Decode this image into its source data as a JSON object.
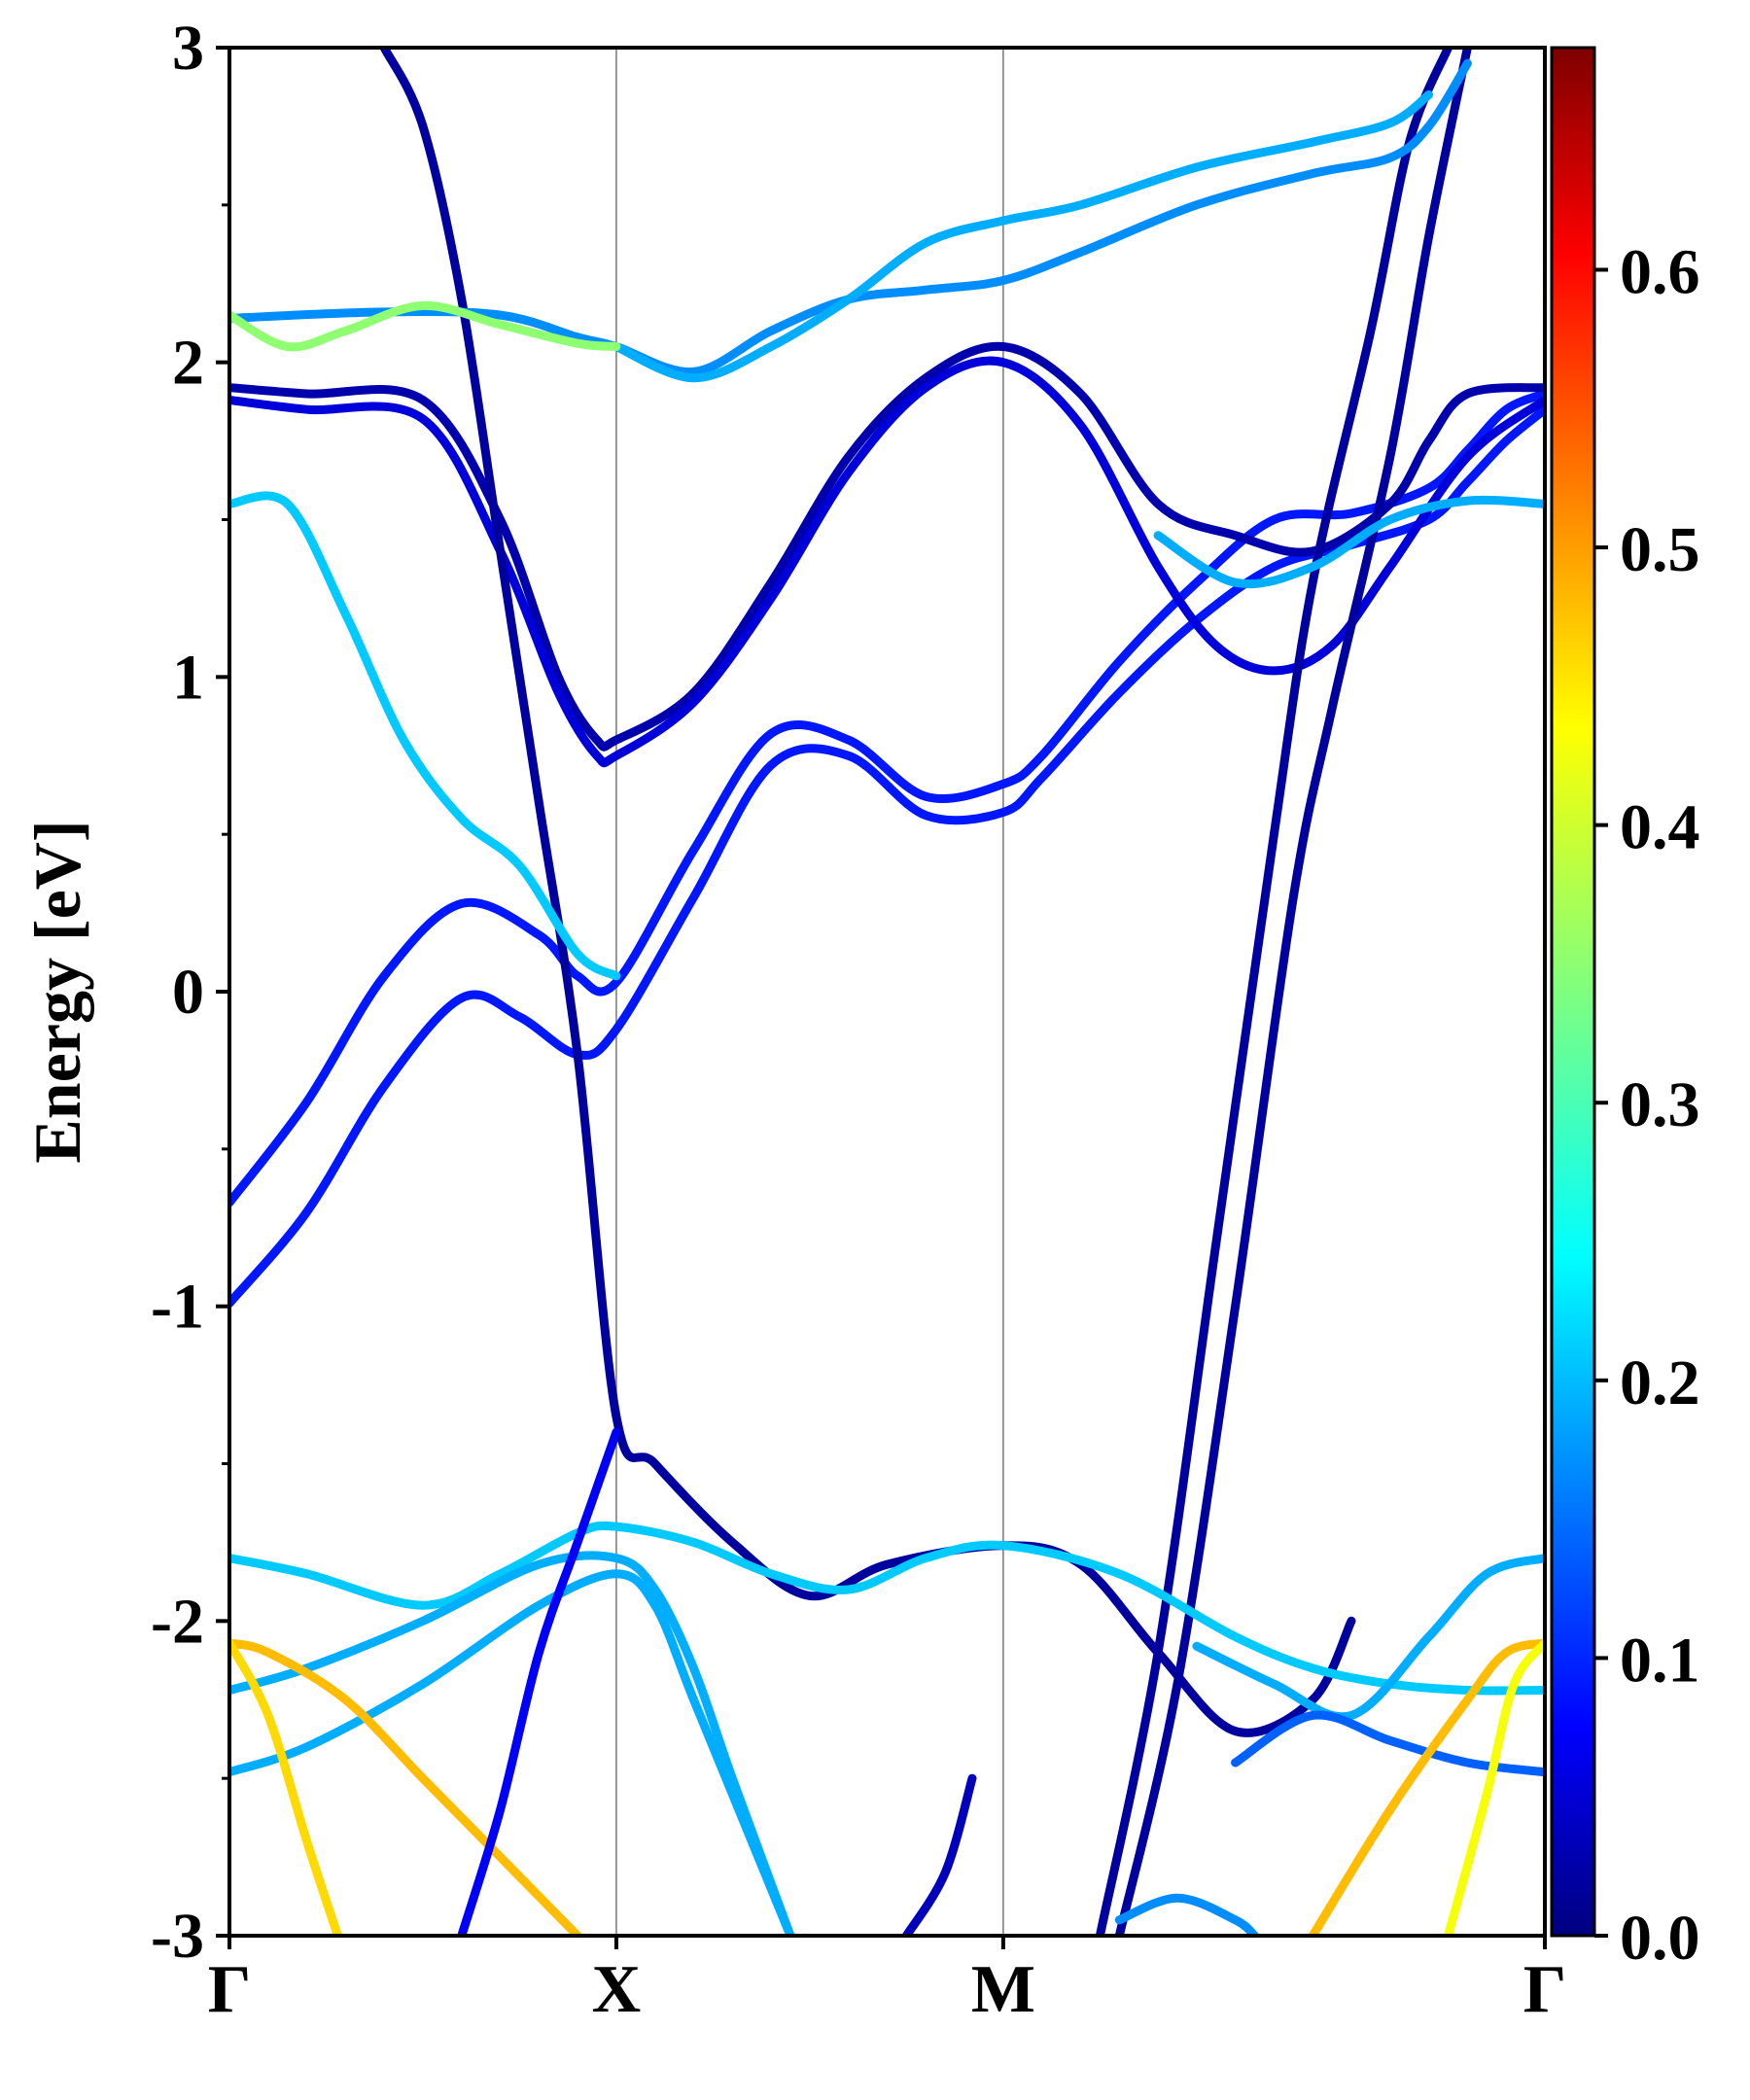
{
  "chart_data": {
    "type": "line",
    "title": "",
    "ylabel": "Energy [eV]",
    "xlabel": "",
    "ylim": [
      -3,
      3
    ],
    "xlim": [
      0,
      3.4
    ],
    "y_ticks": [
      {
        "value": -3,
        "label": "-3"
      },
      {
        "value": -2,
        "label": "-2"
      },
      {
        "value": -1,
        "label": "-1"
      },
      {
        "value": 0,
        "label": "0"
      },
      {
        "value": 1,
        "label": "1"
      },
      {
        "value": 2,
        "label": "2"
      },
      {
        "value": 3,
        "label": "3"
      }
    ],
    "y_minor_ticks": [
      -2.5,
      -1.5,
      -0.5,
      0.5,
      1.5,
      2.5
    ],
    "x_ticks": [
      {
        "value": 0,
        "label": "Γ"
      },
      {
        "value": 1,
        "label": "X"
      },
      {
        "value": 2,
        "label": "M"
      },
      {
        "value": 3.4,
        "label": "Γ"
      }
    ],
    "vertical_lines": [
      1,
      2
    ],
    "grid": false,
    "colorbar": {
      "colormap": "jet",
      "range": [
        0,
        0.68
      ],
      "ticks": [
        {
          "value": 0.0,
          "label": "0.0"
        },
        {
          "value": 0.1,
          "label": "0.1"
        },
        {
          "value": 0.2,
          "label": "0.2"
        },
        {
          "value": 0.3,
          "label": "0.3"
        },
        {
          "value": 0.4,
          "label": "0.4"
        },
        {
          "value": 0.5,
          "label": "0.5"
        },
        {
          "value": 0.6,
          "label": "0.6"
        }
      ]
    },
    "series": [
      {
        "weight": 0.1,
        "points": [
          [
            0,
            -0.67
          ],
          [
            0.2,
            -0.35
          ],
          [
            0.4,
            0.05
          ],
          [
            0.6,
            0.28
          ],
          [
            0.8,
            0.18
          ],
          [
            0.9,
            0.05
          ],
          [
            1,
            0.03
          ],
          [
            1.2,
            0.45
          ],
          [
            1.4,
            0.82
          ],
          [
            1.6,
            0.8
          ],
          [
            1.8,
            0.62
          ],
          [
            2,
            0.66
          ],
          [
            2.1,
            0.75
          ],
          [
            2.3,
            1.05
          ],
          [
            2.5,
            1.3
          ],
          [
            2.7,
            1.5
          ],
          [
            2.9,
            1.52
          ],
          [
            3.1,
            1.6
          ],
          [
            3.2,
            1.72
          ],
          [
            3.3,
            1.85
          ],
          [
            3.4,
            1.9
          ]
        ]
      },
      {
        "weight": 0.1,
        "points": [
          [
            0,
            -0.99
          ],
          [
            0.2,
            -0.7
          ],
          [
            0.4,
            -0.3
          ],
          [
            0.6,
            -0.02
          ],
          [
            0.75,
            -0.08
          ],
          [
            0.9,
            -0.2
          ],
          [
            1,
            -0.12
          ],
          [
            1.2,
            0.3
          ],
          [
            1.4,
            0.72
          ],
          [
            1.6,
            0.75
          ],
          [
            1.8,
            0.56
          ],
          [
            2,
            0.57
          ],
          [
            2.1,
            0.68
          ],
          [
            2.3,
            0.95
          ],
          [
            2.5,
            1.18
          ],
          [
            2.7,
            1.35
          ],
          [
            2.9,
            1.42
          ],
          [
            3.1,
            1.5
          ],
          [
            3.2,
            1.62
          ],
          [
            3.3,
            1.75
          ],
          [
            3.4,
            1.85
          ]
        ]
      },
      {
        "weight": 0.03,
        "points": [
          [
            0,
            1.92
          ],
          [
            0.2,
            1.9
          ],
          [
            0.5,
            1.88
          ],
          [
            0.7,
            1.5
          ],
          [
            0.85,
            1.0
          ],
          [
            0.95,
            0.8
          ],
          [
            1,
            0.8
          ],
          [
            1.2,
            0.95
          ],
          [
            1.4,
            1.3
          ],
          [
            1.6,
            1.7
          ],
          [
            1.8,
            1.95
          ],
          [
            2,
            2.05
          ],
          [
            2.2,
            1.9
          ],
          [
            2.4,
            1.55
          ],
          [
            2.6,
            1.45
          ],
          [
            2.8,
            1.4
          ],
          [
            3,
            1.55
          ],
          [
            3.1,
            1.75
          ],
          [
            3.2,
            1.9
          ],
          [
            3.4,
            1.92
          ]
        ]
      },
      {
        "weight": 0.06,
        "points": [
          [
            0,
            1.88
          ],
          [
            0.2,
            1.85
          ],
          [
            0.5,
            1.82
          ],
          [
            0.7,
            1.4
          ],
          [
            0.85,
            0.95
          ],
          [
            0.95,
            0.75
          ],
          [
            1,
            0.75
          ],
          [
            1.2,
            0.92
          ],
          [
            1.4,
            1.25
          ],
          [
            1.6,
            1.65
          ],
          [
            1.8,
            1.92
          ],
          [
            2,
            2.0
          ],
          [
            2.2,
            1.8
          ],
          [
            2.4,
            1.35
          ],
          [
            2.55,
            1.1
          ],
          [
            2.7,
            1.02
          ],
          [
            2.85,
            1.1
          ],
          [
            3,
            1.35
          ],
          [
            3.2,
            1.7
          ],
          [
            3.4,
            1.88
          ]
        ]
      },
      {
        "weight": 0.02,
        "points": [
          [
            0.4,
            3.0
          ],
          [
            0.5,
            2.75
          ],
          [
            0.6,
            2.2
          ],
          [
            0.7,
            1.4
          ],
          [
            0.8,
            0.6
          ],
          [
            0.9,
            -0.2
          ],
          [
            1,
            -1.35
          ],
          [
            1.1,
            -1.5
          ],
          [
            1.3,
            -1.75
          ],
          [
            1.5,
            -1.92
          ],
          [
            1.7,
            -1.82
          ],
          [
            2,
            -1.76
          ],
          [
            2.2,
            -1.82
          ],
          [
            2.4,
            -2.1
          ],
          [
            2.6,
            -2.35
          ],
          [
            2.8,
            -2.25
          ],
          [
            2.9,
            -2.0
          ]
        ]
      },
      {
        "weight": 0.02,
        "points": [
          [
            2.3,
            -3.0
          ],
          [
            2.45,
            -2.2
          ],
          [
            2.6,
            -1.0
          ],
          [
            2.75,
            0.3
          ],
          [
            2.85,
            0.9
          ],
          [
            3,
            1.7
          ],
          [
            3.1,
            2.4
          ],
          [
            3.2,
            3.0
          ]
        ]
      },
      {
        "weight": 0.02,
        "points": [
          [
            2.25,
            -3.0
          ],
          [
            2.4,
            -2.1
          ],
          [
            2.55,
            -0.8
          ],
          [
            2.7,
            0.5
          ],
          [
            2.8,
            1.3
          ],
          [
            2.95,
            2.1
          ],
          [
            3.05,
            2.7
          ],
          [
            3.15,
            3.0
          ]
        ]
      },
      {
        "weight": 0.18,
        "points": [
          [
            0,
            2.14
          ],
          [
            0.4,
            2.16
          ],
          [
            0.7,
            2.15
          ],
          [
            0.9,
            2.08
          ],
          [
            1,
            2.05
          ],
          [
            1.2,
            1.97
          ],
          [
            1.4,
            2.1
          ],
          [
            1.6,
            2.2
          ],
          [
            1.8,
            2.23
          ],
          [
            2,
            2.26
          ],
          [
            2.2,
            2.35
          ],
          [
            2.5,
            2.5
          ],
          [
            2.8,
            2.6
          ],
          [
            3,
            2.65
          ],
          [
            3.1,
            2.75
          ],
          [
            3.2,
            2.95
          ]
        ]
      },
      {
        "weight": 0.2,
        "points": [
          [
            1,
            2.05
          ],
          [
            1.2,
            1.95
          ],
          [
            1.4,
            2.05
          ],
          [
            1.6,
            2.2
          ],
          [
            1.8,
            2.38
          ],
          [
            2,
            2.45
          ],
          [
            2.2,
            2.5
          ],
          [
            2.5,
            2.62
          ],
          [
            2.8,
            2.7
          ],
          [
            3,
            2.76
          ],
          [
            3.1,
            2.85
          ]
        ]
      },
      {
        "weight": 0.35,
        "points": [
          [
            0,
            2.15
          ],
          [
            0.15,
            2.05
          ],
          [
            0.3,
            2.1
          ],
          [
            0.5,
            2.18
          ],
          [
            0.7,
            2.12
          ],
          [
            0.9,
            2.06
          ],
          [
            1,
            2.05
          ]
        ]
      },
      {
        "weight": 0.22,
        "points": [
          [
            0,
            1.55
          ],
          [
            0.15,
            1.55
          ],
          [
            0.3,
            1.2
          ],
          [
            0.45,
            0.8
          ],
          [
            0.6,
            0.55
          ],
          [
            0.75,
            0.4
          ],
          [
            0.9,
            0.12
          ],
          [
            1,
            0.05
          ]
        ]
      },
      {
        "weight": 0.2,
        "points": [
          [
            2.4,
            1.45
          ],
          [
            2.6,
            1.3
          ],
          [
            2.8,
            1.35
          ],
          [
            3,
            1.5
          ],
          [
            3.2,
            1.56
          ],
          [
            3.4,
            1.55
          ]
        ]
      },
      {
        "weight": 0.22,
        "points": [
          [
            0,
            -1.8
          ],
          [
            0.2,
            -1.85
          ],
          [
            0.5,
            -1.95
          ],
          [
            0.7,
            -1.85
          ],
          [
            0.9,
            -1.72
          ],
          [
            1,
            -1.7
          ],
          [
            1.2,
            -1.75
          ],
          [
            1.4,
            -1.85
          ],
          [
            1.6,
            -1.9
          ],
          [
            1.8,
            -1.8
          ],
          [
            2,
            -1.76
          ],
          [
            2.3,
            -1.85
          ],
          [
            2.6,
            -2.05
          ],
          [
            2.8,
            -2.15
          ],
          [
            3,
            -2.2
          ],
          [
            3.2,
            -2.22
          ],
          [
            3.4,
            -2.22
          ]
        ]
      },
      {
        "weight": 0.2,
        "points": [
          [
            0,
            -2.22
          ],
          [
            0.2,
            -2.15
          ],
          [
            0.5,
            -2.0
          ],
          [
            0.8,
            -1.82
          ],
          [
            1,
            -1.8
          ],
          [
            1.1,
            -1.9
          ],
          [
            1.2,
            -2.15
          ],
          [
            1.3,
            -2.5
          ],
          [
            1.45,
            -3.0
          ]
        ]
      },
      {
        "weight": 0.2,
        "points": [
          [
            0,
            -2.48
          ],
          [
            0.2,
            -2.4
          ],
          [
            0.5,
            -2.2
          ],
          [
            0.8,
            -1.95
          ],
          [
            1,
            -1.85
          ],
          [
            1.1,
            -1.95
          ],
          [
            1.2,
            -2.25
          ],
          [
            1.35,
            -2.7
          ],
          [
            1.45,
            -3.0
          ]
        ]
      },
      {
        "weight": 0.2,
        "points": [
          [
            2.5,
            -2.08
          ],
          [
            2.7,
            -2.2
          ],
          [
            2.9,
            -2.3
          ],
          [
            3.1,
            -2.05
          ],
          [
            3.25,
            -1.85
          ],
          [
            3.4,
            -1.8
          ]
        ]
      },
      {
        "weight": 0.15,
        "points": [
          [
            2.6,
            -2.45
          ],
          [
            2.8,
            -2.3
          ],
          [
            3,
            -2.38
          ],
          [
            3.2,
            -2.45
          ],
          [
            3.4,
            -2.48
          ]
        ]
      },
      {
        "weight": 0.47,
        "points": [
          [
            0,
            -2.07
          ],
          [
            0.1,
            -2.1
          ],
          [
            0.3,
            -2.25
          ],
          [
            0.5,
            -2.5
          ],
          [
            0.7,
            -2.75
          ],
          [
            0.9,
            -3.0
          ]
        ]
      },
      {
        "weight": 0.45,
        "points": [
          [
            0,
            -2.07
          ],
          [
            0.1,
            -2.3
          ],
          [
            0.2,
            -2.7
          ],
          [
            0.28,
            -3.0
          ]
        ]
      },
      {
        "weight": 0.47,
        "points": [
          [
            2.8,
            -3.0
          ],
          [
            3,
            -2.6
          ],
          [
            3.2,
            -2.25
          ],
          [
            3.3,
            -2.1
          ],
          [
            3.4,
            -2.07
          ]
        ]
      },
      {
        "weight": 0.42,
        "points": [
          [
            3.15,
            -3.0
          ],
          [
            3.25,
            -2.55
          ],
          [
            3.32,
            -2.2
          ],
          [
            3.4,
            -2.07
          ]
        ]
      },
      {
        "weight": 0.08,
        "points": [
          [
            0.6,
            -3.0
          ],
          [
            0.7,
            -2.6
          ],
          [
            0.8,
            -2.1
          ],
          [
            0.9,
            -1.75
          ],
          [
            1,
            -1.4
          ]
        ]
      },
      {
        "weight": 0.04,
        "points": [
          [
            1.75,
            -3.0
          ],
          [
            1.85,
            -2.8
          ],
          [
            1.92,
            -2.5
          ]
        ]
      },
      {
        "weight": 0.18,
        "points": [
          [
            2.3,
            -2.95
          ],
          [
            2.45,
            -2.88
          ],
          [
            2.6,
            -2.95
          ],
          [
            2.65,
            -3.0
          ]
        ]
      }
    ]
  }
}
